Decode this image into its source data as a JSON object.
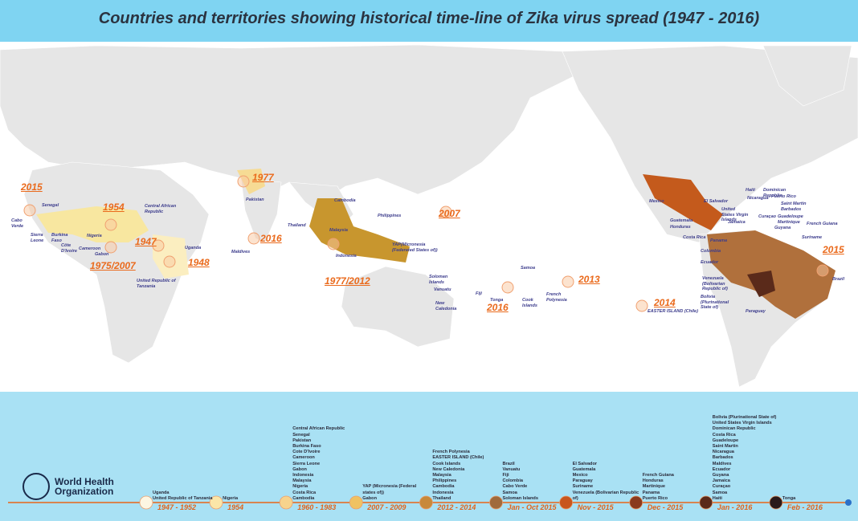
{
  "title": "Countries and territories showing historical time-line of Zika virus spread (1947 - 2016)",
  "logo": "World Health Organization",
  "map": {
    "years": [
      "2015",
      "1954",
      "1977",
      "1947",
      "1948",
      "1975/2007",
      "2016",
      "1977/2012",
      "2007",
      "2016",
      "2013",
      "2014",
      "2015"
    ],
    "countries": [
      "Cabo Verde",
      "Senegal",
      "Sierra Leone",
      "Burkina Faso",
      "Côte D'Ivoire",
      "Cameroon",
      "Gabon",
      "Nigeria",
      "Central African Republic",
      "Uganda",
      "United Republic of Tanzania",
      "Pakistan",
      "Maldives",
      "Thailand",
      "Cambodia",
      "Malaysia",
      "Indonesia",
      "Philippines",
      "YAP(Micronesia (Federated States of))",
      "Soloman Islands",
      "Vanuatu",
      "New Caledonia",
      "Fiji",
      "Tonga",
      "Samoa",
      "Cook Islands",
      "French Polynesia",
      "Mexico",
      "El Salvador",
      "Haiti",
      "Nicaragua",
      "Dominican Republic",
      "Puerto Rico",
      "United States Virgin Islands",
      "Jamaica",
      "Saint Martin",
      "Barbados",
      "Guatemala",
      "Honduras",
      "Curaçao",
      "Guadeloupe",
      "Martinique",
      "French Guiana",
      "Costa Rica",
      "Panama",
      "Guyana",
      "Suriname",
      "Colombia",
      "Ecuador",
      "Venezuela (Bolivarian Republic of)",
      "Bolivia (Plurinational State of)",
      "Paraguay",
      "EASTER ISLAND (Chile)",
      "Brazil"
    ]
  },
  "timeline": {
    "periods": [
      {
        "label": "1947 - 1952",
        "color": "#fdf6e2",
        "countries": [
          "Uganda",
          "United Republic of Tanzania"
        ]
      },
      {
        "label": "1954",
        "color": "#fbe6a8",
        "countries": [
          "Nigeria"
        ]
      },
      {
        "label": "1960 - 1983",
        "color": "#f7d38c",
        "countries": [
          "Central African Republic",
          "Senegal",
          "Pakistan",
          "Burkina Faso",
          "Cote D'Ivoire",
          "Cameroon",
          "Sierra Leone",
          "Gabon",
          "Indonesia",
          "Malaysia",
          "Nigeria",
          "Costa Rica",
          "Cambodia"
        ]
      },
      {
        "label": "2007 - 2009",
        "color": "#f0c262",
        "countries": [
          "YAP (Micronesia (Federal states of))",
          "Gabon"
        ]
      },
      {
        "label": "2012 - 2014",
        "color": "#c8893a",
        "countries": [
          "French Polynesia",
          "EASTER ISLAND (Chile)",
          "Cook Islands",
          "New Caledonia",
          "Malaysia",
          "Philippines",
          "Cambodia",
          "Indonesia",
          "Thailand"
        ]
      },
      {
        "label": "Jan - Oct 2015",
        "color": "#a06a3c",
        "countries": [
          "Brazil",
          "Vanuatu",
          "Fiji",
          "Colombia",
          "Cabo Verde",
          "Samoa",
          "Soloman Islands"
        ]
      },
      {
        "label": "Nov - 2015",
        "color": "#c8561e",
        "countries": [
          "El Salvador",
          "Guatemala",
          "Mexico",
          "Paraguay",
          "Suriname",
          "Venezuela (Bolivarian Republic of)"
        ]
      },
      {
        "label": "Dec - 2015",
        "color": "#8a3a1e",
        "countries": [
          "French Guiana",
          "Honduras",
          "Martinique",
          "Panama",
          "Puerto Rico"
        ]
      },
      {
        "label": "Jan - 2016",
        "color": "#5a2a1a",
        "countries": [
          "Bolivia (Plurinational State of)",
          "United States Virgin Islands",
          "Dominican Republic",
          "Costa Rica",
          "Guadeloupe",
          "Saint Martin",
          "Nicaragua",
          "Barbados",
          "Maldives",
          "Ecuador",
          "Guyana",
          "Jamaica",
          "Curaçao",
          "Samoa",
          "Haiti"
        ]
      },
      {
        "label": "Feb - 2016",
        "color": "#2a1a1a",
        "countries": [
          "Tonga"
        ]
      }
    ]
  }
}
